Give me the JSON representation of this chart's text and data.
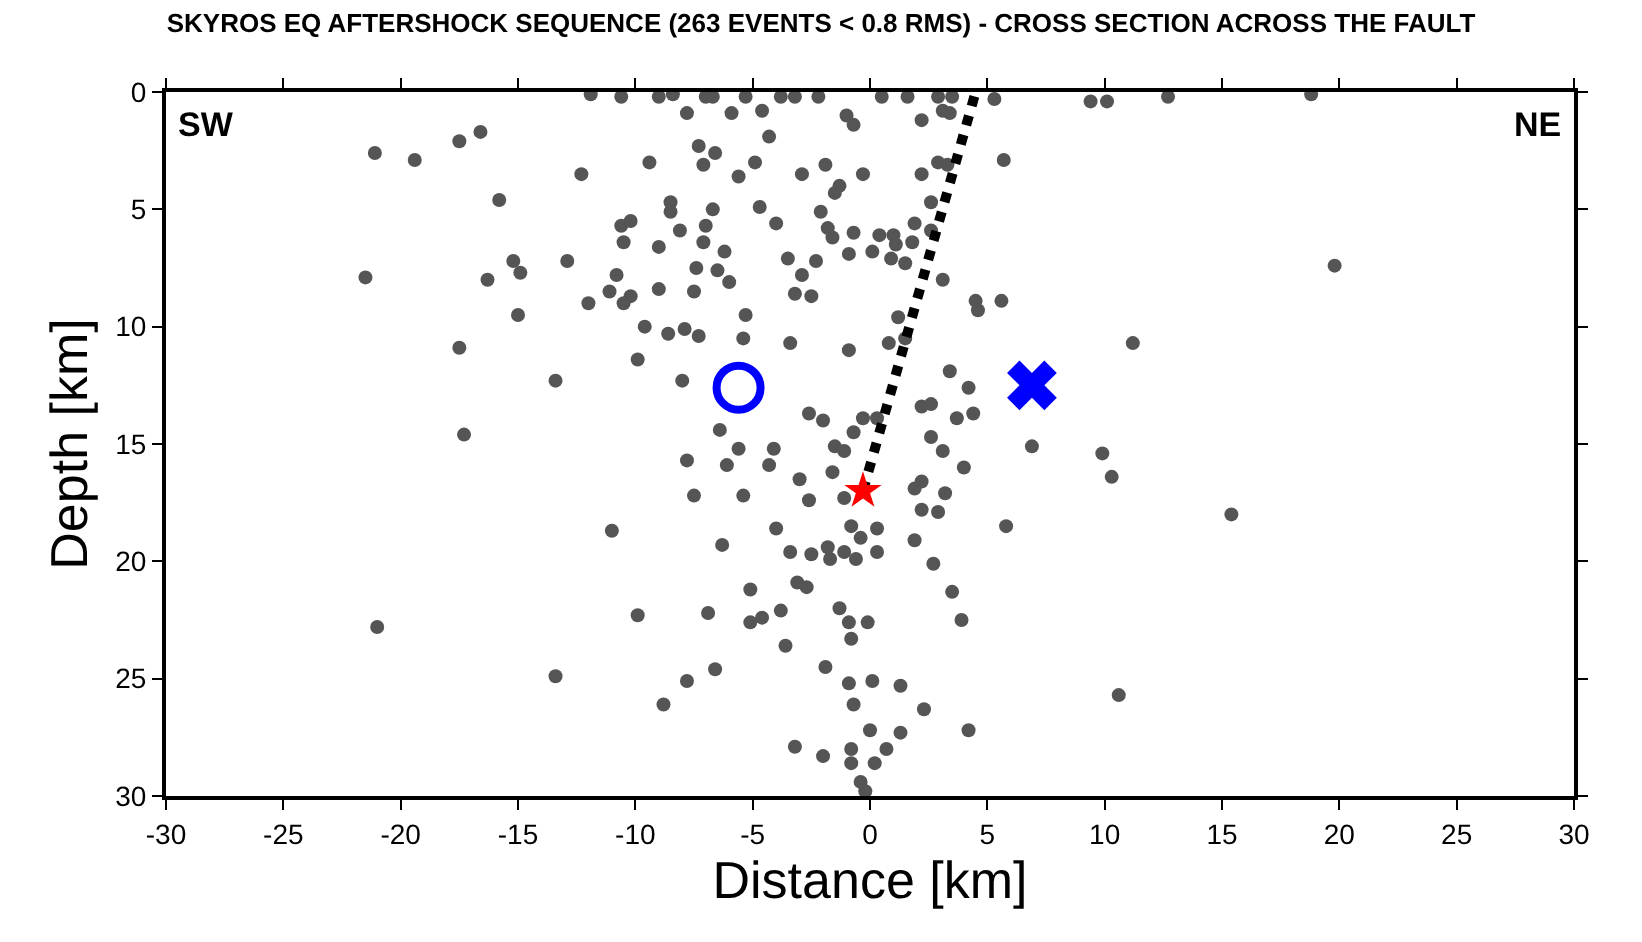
{
  "chart_data": {
    "type": "scatter",
    "title": "SKYROS EQ AFTERSHOCK SEQUENCE (263 EVENTS < 0.8 RMS) - CROSS SECTION ACROSS THE FAULT",
    "xlabel": "Distance [km]",
    "ylabel": "Depth [km]",
    "annotations": [
      "SW",
      "NE"
    ],
    "xlim": [
      -30,
      30
    ],
    "ylim": [
      30,
      0
    ],
    "xticks": [
      -30,
      -25,
      -20,
      -15,
      -10,
      -5,
      0,
      5,
      10,
      15,
      20,
      25,
      30
    ],
    "yticks": [
      0,
      5,
      10,
      15,
      20,
      25,
      30
    ],
    "marker": "circle",
    "series": [
      {
        "color": "#555555",
        "x": [
          -21.1,
          -19.4,
          -17.5,
          -16.6,
          -12.3,
          -9.4,
          -15.8,
          -8.5,
          -8.5,
          -10.6,
          -10.2,
          -10.5,
          -9.0,
          -8.1,
          -15.2,
          -14.9,
          -12.9,
          -16.3,
          -21.5,
          -10.8,
          -11.1,
          -10.2,
          -10.5,
          -12.0,
          -9.0,
          -15.0,
          -9.6,
          -8.6,
          -7.9,
          -9.9,
          -17.5,
          -13.4,
          -8.0,
          -17.3,
          -11.9,
          -10.6,
          -9.0,
          -8.4,
          -7.8,
          -7.0,
          -6.7,
          -5.3,
          -3.8,
          -3.2,
          -2.2,
          0.5,
          1.6,
          2.9,
          3.5,
          5.3,
          -5.9,
          -4.6,
          -1.0,
          -0.7,
          2.2,
          3.1,
          3.4,
          -4.3,
          -7.3,
          -6.6,
          -7.1,
          -4.9,
          -5.6,
          -2.9,
          -1.9,
          -0.3,
          -1.3,
          -1.5,
          2.2,
          2.9,
          3.3,
          5.7,
          -6.7,
          -4.7,
          2.6,
          -2.1,
          -4.0,
          -7.0,
          -7.1,
          -6.2,
          -1.8,
          -1.6,
          -0.7,
          0.4,
          1.0,
          1.1,
          1.9,
          1.8,
          2.6,
          0.1,
          0.9,
          1.5,
          -0.9,
          -3.5,
          -2.3,
          -2.9,
          -7.4,
          -6.5,
          -6.0,
          -7.5,
          -3.2,
          -2.5,
          3.1,
          4.5,
          4.6,
          5.6,
          -7.3,
          -5.3,
          -5.4,
          -3.4,
          -0.9,
          1.2,
          0.8,
          1.5,
          3.4,
          4.2,
          2.2,
          2.6,
          -2.6,
          -2.0,
          -0.3,
          0.3,
          -0.7,
          3.7,
          4.4,
          -6.4,
          -5.6,
          -4.1,
          -6.1,
          -4.3,
          -7.8,
          -1.5,
          -1.1,
          -3.0,
          -1.6,
          -2.6,
          -1.1,
          -7.5,
          -5.4,
          -11.0,
          -4.0,
          -6.3,
          -0.8,
          0.3,
          -0.4,
          -3.4,
          -2.5,
          -1.8,
          -1.7,
          -1.1,
          -0.6,
          0.3,
          1.9,
          2.7,
          2.6,
          3.1,
          4.0,
          1.9,
          2.2,
          3.2,
          2.2,
          2.9,
          5.8,
          6.9,
          9.9,
          10.3,
          -5.1,
          -3.1,
          -2.7,
          -9.9,
          -6.9,
          -5.1,
          -4.6,
          -3.8,
          -3.6,
          -1.3,
          -0.9,
          -0.1,
          -0.8,
          3.5,
          3.9,
          -6.6,
          -7.8,
          -8.8,
          -1.9,
          -0.9,
          0.1,
          1.3,
          -0.7,
          2.3,
          0.0,
          1.3,
          4.2,
          -3.2,
          -2.0,
          -0.8,
          -0.8,
          0.2,
          0.7,
          -0.4,
          -0.2,
          10.6,
          -21.0,
          -13.4,
          9.4,
          10.1,
          12.7,
          18.8,
          19.8,
          11.2,
          15.4
        ],
        "values": [
          2.6,
          2.9,
          2.1,
          1.7,
          3.5,
          3.0,
          4.6,
          4.7,
          5.1,
          5.7,
          5.5,
          6.4,
          6.6,
          5.9,
          7.2,
          7.7,
          7.2,
          8.0,
          7.9,
          7.8,
          8.5,
          8.7,
          9.0,
          9.0,
          8.4,
          9.5,
          10.0,
          10.3,
          10.1,
          11.4,
          10.9,
          12.3,
          12.3,
          14.6,
          0.1,
          0.2,
          0.2,
          0.1,
          0.9,
          0.2,
          0.2,
          0.2,
          0.2,
          0.2,
          0.2,
          0.2,
          0.2,
          0.2,
          0.2,
          0.3,
          0.9,
          0.8,
          1.0,
          1.4,
          1.2,
          0.8,
          0.9,
          1.9,
          2.3,
          2.6,
          3.1,
          3.0,
          3.6,
          3.5,
          3.1,
          3.5,
          4.0,
          4.3,
          3.5,
          3.0,
          3.1,
          2.9,
          5.0,
          4.9,
          4.7,
          5.1,
          5.6,
          5.7,
          6.4,
          6.8,
          5.8,
          6.2,
          6.0,
          6.1,
          6.1,
          6.5,
          5.6,
          6.4,
          5.9,
          6.8,
          7.1,
          7.3,
          6.9,
          7.1,
          7.2,
          7.8,
          7.5,
          7.6,
          8.1,
          8.5,
          8.6,
          8.7,
          8.0,
          8.9,
          9.3,
          8.9,
          10.4,
          9.5,
          10.5,
          10.7,
          11.0,
          9.6,
          10.7,
          10.5,
          11.9,
          12.6,
          13.4,
          13.3,
          13.7,
          14.0,
          13.9,
          13.9,
          14.5,
          13.9,
          13.7,
          14.4,
          15.2,
          15.2,
          15.9,
          15.9,
          15.7,
          15.1,
          15.3,
          16.5,
          16.2,
          17.4,
          17.3,
          17.2,
          17.2,
          18.7,
          18.6,
          19.3,
          18.5,
          18.6,
          19.0,
          19.6,
          19.7,
          19.4,
          19.9,
          19.6,
          19.9,
          19.6,
          19.1,
          20.1,
          14.7,
          15.3,
          16.0,
          16.9,
          16.6,
          17.1,
          17.8,
          17.9,
          18.5,
          15.1,
          15.4,
          16.4,
          21.2,
          20.9,
          21.1,
          22.3,
          22.2,
          22.6,
          22.4,
          22.1,
          23.6,
          22.0,
          22.6,
          22.6,
          23.3,
          21.3,
          22.5,
          24.6,
          25.1,
          26.1,
          24.5,
          25.2,
          25.1,
          25.3,
          26.1,
          26.3,
          27.2,
          27.3,
          27.2,
          27.9,
          28.3,
          28.0,
          28.6,
          28.6,
          28.0,
          29.4,
          29.8,
          25.7,
          22.8,
          24.9,
          0.4,
          0.4,
          0.2,
          0.1,
          7.4,
          10.7,
          18.0
        ]
      },
      {
        "type": "line",
        "color": "#000000",
        "line_style": "dotted",
        "marker": "none",
        "x": [
          -0.3,
          4.5
        ],
        "values": [
          17.0,
          0.0
        ]
      },
      {
        "type": "scatter",
        "color": "#ff0000",
        "marker": "star",
        "x": [
          -0.3
        ],
        "values": [
          17.0
        ]
      },
      {
        "type": "scatter",
        "color": "#0000ff",
        "marker": "circle",
        "x": [
          -5.6
        ],
        "values": [
          12.6
        ]
      },
      {
        "type": "scatter",
        "color": "#0000ff",
        "marker": "cross",
        "x": [
          6.9
        ],
        "values": [
          12.5
        ]
      }
    ]
  }
}
